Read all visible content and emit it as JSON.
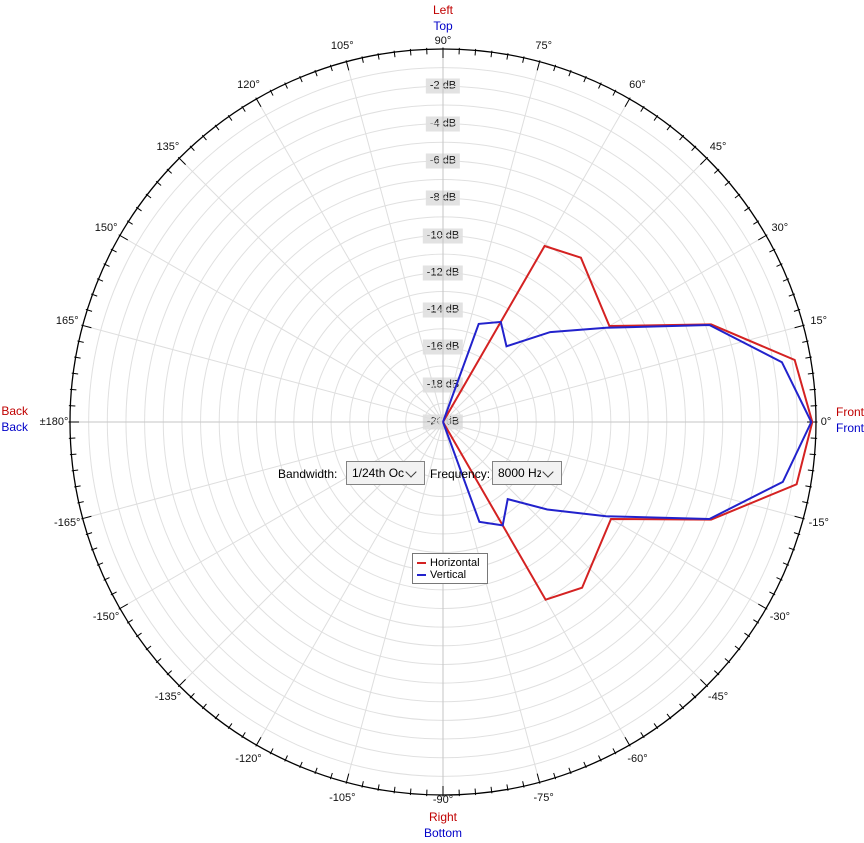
{
  "colors": {
    "horizontal_series": "#d42222",
    "vertical_series": "#2222cc",
    "direction_horizontal": "#c00000",
    "direction_vertical": "#0000c8",
    "db_label_background": "#e2e2e2",
    "grid_ring": "#e0e0e0",
    "grid_spoke": "#dedede",
    "grid_cardinal_spoke": "#c6c6c6",
    "outer_circle": "#000000"
  },
  "directions": {
    "top": {
      "horizontal": "Left",
      "vertical": "Top"
    },
    "right": {
      "horizontal": "Front",
      "vertical": "Front"
    },
    "bottom": {
      "horizontal": "Right",
      "vertical": "Bottom"
    },
    "left": {
      "horizontal": "Back",
      "vertical": "Back"
    }
  },
  "controls": {
    "bandwidth": {
      "label": "Bandwidth:",
      "value": "1/24th Oct"
    },
    "frequency": {
      "label": "Frequency:",
      "value": "8000 Hz"
    }
  },
  "legend": {
    "items": [
      {
        "label": "Horizontal",
        "color": "#d42222"
      },
      {
        "label": "Vertical",
        "color": "#2222cc"
      }
    ]
  },
  "chart_data": {
    "type": "line",
    "polar": true,
    "angle_unit": "degrees",
    "zero_angle_position": "right",
    "angle_label_step_deg": 15,
    "angle_tick_minor_deg": 2.5,
    "grid": {
      "ring_color": "#e0e0e0",
      "spoke_color": "#dedede",
      "cardinal_spoke_color": "#c6c6c6"
    },
    "radial_axis": {
      "unit": "dB",
      "min": -20,
      "max": 0,
      "ring_step_db": 1,
      "label_step_db": 2,
      "labels": [
        {
          "db": -2,
          "label": "-2 dB"
        },
        {
          "db": -4,
          "label": "-4 dB"
        },
        {
          "db": -6,
          "label": "-6 dB"
        },
        {
          "db": -8,
          "label": "-8 dB"
        },
        {
          "db": -10,
          "label": "-10 dB"
        },
        {
          "db": -12,
          "label": "-12 dB"
        },
        {
          "db": -14,
          "label": "-14 dB"
        },
        {
          "db": -16,
          "label": "-16 dB"
        },
        {
          "db": -18,
          "label": "-18 dB"
        },
        {
          "db": -20,
          "label": "-20 dB"
        }
      ]
    },
    "angle_labels": [
      {
        "angle": 90,
        "label": "90°"
      },
      {
        "angle": 75,
        "label": "75°"
      },
      {
        "angle": 60,
        "label": "60°"
      },
      {
        "angle": 45,
        "label": "45°"
      },
      {
        "angle": 30,
        "label": "30°"
      },
      {
        "angle": 15,
        "label": "15°"
      },
      {
        "angle": 0,
        "label": "0°"
      },
      {
        "angle": -15,
        "label": "-15°"
      },
      {
        "angle": -30,
        "label": "-30°"
      },
      {
        "angle": -45,
        "label": "-45°"
      },
      {
        "angle": -60,
        "label": "-60°"
      },
      {
        "angle": -75,
        "label": "-75°"
      },
      {
        "angle": -90,
        "label": "-90°"
      },
      {
        "angle": -105,
        "label": "-105°"
      },
      {
        "angle": -120,
        "label": "-120°"
      },
      {
        "angle": -135,
        "label": "-135°"
      },
      {
        "angle": -150,
        "label": "-150°"
      },
      {
        "angle": -165,
        "label": "-165°"
      },
      {
        "angle": 180,
        "label": "±180°"
      },
      {
        "angle": 165,
        "label": "165°"
      },
      {
        "angle": 150,
        "label": "150°"
      },
      {
        "angle": 135,
        "label": "135°"
      },
      {
        "angle": 120,
        "label": "120°"
      },
      {
        "angle": 105,
        "label": "105°"
      }
    ],
    "series": [
      {
        "name": "Horizontal",
        "color": "#d42222",
        "points_angle_db": [
          [
            90,
            -20
          ],
          [
            80,
            -20
          ],
          [
            70,
            -20
          ],
          [
            60,
            -9.1
          ],
          [
            50,
            -8.5
          ],
          [
            40,
            -9.3
          ],
          [
            30,
            -9.7
          ],
          [
            20,
            -4.7
          ],
          [
            10,
            -0.85
          ],
          [
            0,
            -0.2
          ],
          [
            -10,
            -0.75
          ],
          [
            -20,
            -4.7
          ],
          [
            -30,
            -9.6
          ],
          [
            -40,
            -9.2
          ],
          [
            -50,
            -8.4
          ],
          [
            -60,
            -9.0
          ],
          [
            -70,
            -20
          ],
          [
            -80,
            -20
          ],
          [
            -90,
            -20
          ]
        ]
      },
      {
        "name": "Vertical",
        "color": "#2222cc",
        "points_angle_db": [
          [
            90,
            -20
          ],
          [
            80,
            -20
          ],
          [
            70,
            -14.4
          ],
          [
            60,
            -13.8
          ],
          [
            50,
            -14.7
          ],
          [
            40,
            -12.5
          ],
          [
            30,
            -9.9
          ],
          [
            20,
            -4.8
          ],
          [
            10,
            -1.55
          ],
          [
            0,
            -0.25
          ],
          [
            -10,
            -1.5
          ],
          [
            -20,
            -4.8
          ],
          [
            -30,
            -9.9
          ],
          [
            -40,
            -12.7
          ],
          [
            -50,
            -14.6
          ],
          [
            -60,
            -13.6
          ],
          [
            -70,
            -14.3
          ],
          [
            -80,
            -20
          ],
          [
            -90,
            -20
          ]
        ]
      }
    ]
  }
}
